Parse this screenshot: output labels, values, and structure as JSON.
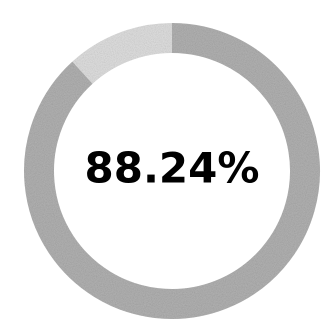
{
  "chart_data": {
    "type": "pie",
    "style": "donut",
    "value_percent": 88.24,
    "label": "88.24%",
    "colors": {
      "filled": "#b4b4b4",
      "remainder": "#e2e2e2",
      "text": "#000000"
    }
  }
}
